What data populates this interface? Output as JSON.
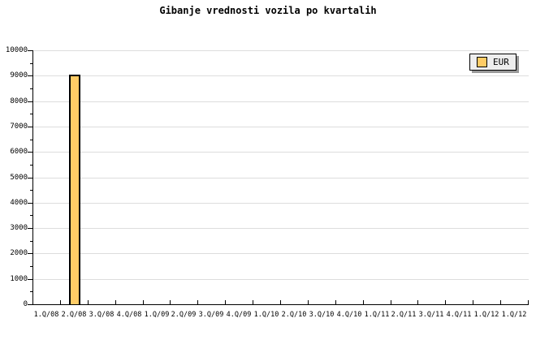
{
  "chart_data": {
    "type": "bar",
    "title": "Gibanje vrednosti vozila po kvartalih",
    "categories": [
      "1.Q/08",
      "2.Q/08",
      "3.Q/08",
      "4.Q/08",
      "1.Q/09",
      "2.Q/09",
      "3.Q/09",
      "4.Q/09",
      "1.Q/10",
      "2.Q/10",
      "3.Q/10",
      "4.Q/10",
      "1.Q/11",
      "2.Q/11",
      "3.Q/11",
      "4.Q/11",
      "1.Q/12",
      "1.Q/12"
    ],
    "series": [
      {
        "name": "EUR",
        "values": [
          null,
          9050,
          null,
          null,
          null,
          null,
          null,
          null,
          null,
          null,
          null,
          null,
          null,
          null,
          null,
          null,
          null,
          null
        ],
        "color": "#FFCC66",
        "border_color": "#000000"
      }
    ],
    "xlabel": "",
    "ylabel": "",
    "ylim": [
      0,
      10000
    ],
    "ytick_interval": 1000,
    "ytick_minor_interval": 500,
    "ytick_labels": [
      "0",
      "1000",
      "2000",
      "3000",
      "4000",
      "5000",
      "6000",
      "7000",
      "8000",
      "9000",
      "10000"
    ],
    "grid": "horizontal-major",
    "grid_color": "#DDDDDD",
    "axis_color": "#000000",
    "background_color": "#FFFFFF",
    "legend": {
      "position": "top-right",
      "label": "EUR",
      "swatch_color": "#FFCC66",
      "background": "#EEEEEE",
      "border_color": "#000000",
      "shadow_color": "#999999"
    }
  }
}
